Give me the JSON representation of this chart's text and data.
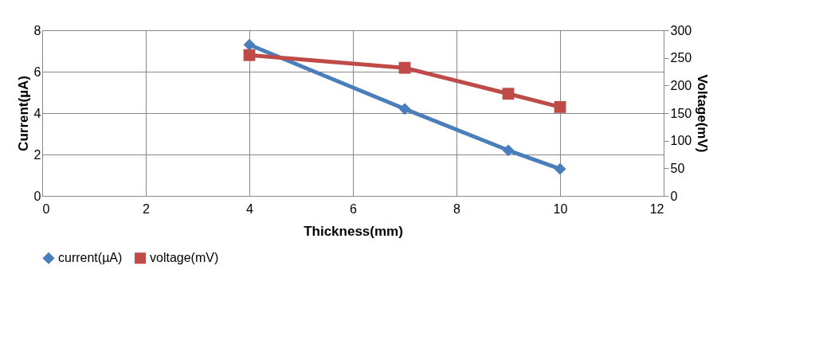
{
  "chart_data": {
    "type": "line",
    "xlabel": "Thickness(mm)",
    "ylabel": "Current(µA)",
    "y2label": "Voltage(mV)",
    "x": [
      4,
      7,
      9,
      10
    ],
    "series": [
      {
        "name": "current(µA)",
        "color": "#4a7ebb",
        "values": [
          7.3,
          4.2,
          2.2,
          1.3
        ],
        "marker": "diamond"
      },
      {
        "name": "voltage(mV)",
        "color": "#be4b48",
        "values": [
          255,
          232,
          185,
          161
        ],
        "marker": "square",
        "axis": "y2"
      }
    ],
    "xlim": [
      0,
      12
    ],
    "xticks": [
      0,
      2,
      4,
      6,
      8,
      10,
      12
    ],
    "ylim": [
      0,
      8
    ],
    "yticks": [
      0,
      2,
      4,
      6,
      8
    ],
    "y2lim": [
      0,
      300
    ],
    "y2ticks": [
      0,
      50,
      100,
      150,
      200,
      250,
      300
    ],
    "grid": true,
    "legend": "bottom",
    "line_style": "solid"
  }
}
